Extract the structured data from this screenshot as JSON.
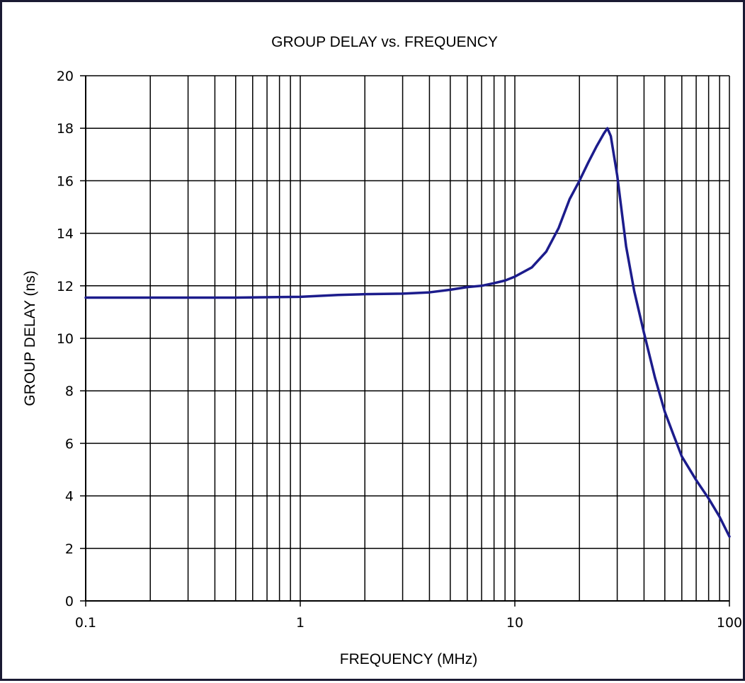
{
  "chart_data": {
    "type": "line",
    "title": "GROUP DELAY vs. FREQUENCY",
    "xlabel": "FREQUENCY (MHz)",
    "ylabel": "GROUP DELAY (ns)",
    "x_scale": "log",
    "xlim": [
      0.1,
      100
    ],
    "ylim": [
      0,
      20
    ],
    "x_ticks": [
      {
        "value": 0.1,
        "label": "0.1"
      },
      {
        "value": 1,
        "label": "1"
      },
      {
        "value": 10,
        "label": "10"
      },
      {
        "value": 100,
        "label": "100"
      }
    ],
    "y_ticks": [
      {
        "value": 0,
        "label": "0"
      },
      {
        "value": 2,
        "label": "2"
      },
      {
        "value": 4,
        "label": "4"
      },
      {
        "value": 6,
        "label": "6"
      },
      {
        "value": 8,
        "label": "8"
      },
      {
        "value": 10,
        "label": "10"
      },
      {
        "value": 12,
        "label": "12"
      },
      {
        "value": 14,
        "label": "14"
      },
      {
        "value": 16,
        "label": "16"
      },
      {
        "value": 18,
        "label": "18"
      },
      {
        "value": 20,
        "label": "20"
      }
    ],
    "grid": true,
    "legend": "none",
    "series": [
      {
        "color": "#1c1c8c",
        "x": [
          0.1,
          0.2,
          0.5,
          1,
          1.5,
          2,
          3,
          4,
          5,
          6,
          7,
          8,
          9,
          10,
          12,
          14,
          16,
          18,
          20,
          22,
          24,
          26,
          27,
          28,
          30,
          33,
          36,
          40,
          45,
          50,
          55,
          60,
          70,
          80,
          90,
          100
        ],
        "y": [
          11.55,
          11.55,
          11.55,
          11.58,
          11.65,
          11.68,
          11.7,
          11.75,
          11.85,
          11.95,
          12.0,
          12.1,
          12.2,
          12.35,
          12.7,
          13.3,
          14.2,
          15.3,
          16.0,
          16.7,
          17.3,
          17.8,
          18.0,
          17.7,
          16.2,
          13.5,
          11.8,
          10.2,
          8.5,
          7.2,
          6.3,
          5.5,
          4.6,
          3.9,
          3.2,
          2.45
        ]
      }
    ]
  }
}
